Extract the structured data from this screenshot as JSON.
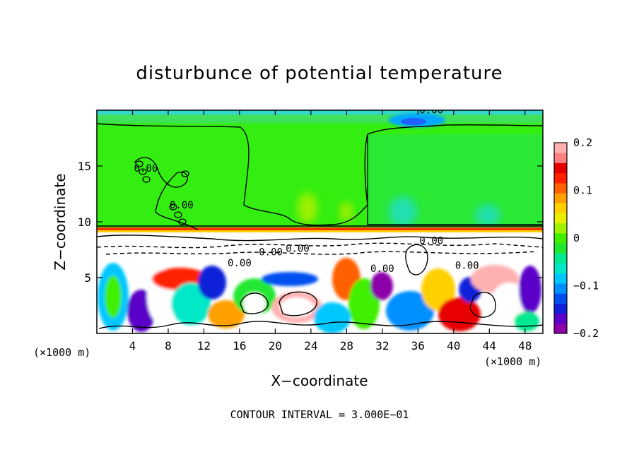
{
  "chart_data": {
    "type": "heatmap",
    "title": "disturbunce of potential temperature",
    "xlabel": "X−coordinate",
    "ylabel": "Z−coordinate",
    "x_unit": "(×1000 m)",
    "x_unit_right": "(×1000 m)",
    "xlim": [
      0,
      50
    ],
    "ylim": [
      0,
      20
    ],
    "x_ticks": [
      4,
      8,
      12,
      16,
      20,
      24,
      28,
      32,
      36,
      40,
      44,
      48
    ],
    "x_tick_labels": [
      "4",
      "8",
      "12",
      "16",
      "20",
      "24",
      "28",
      "32",
      "36",
      "40",
      "44",
      "48"
    ],
    "y_ticks": [
      5,
      10,
      15
    ],
    "y_tick_labels": [
      "5",
      "10",
      "15"
    ],
    "colorbar": {
      "min": -0.2,
      "max": 0.2,
      "ticks": [
        -0.2,
        -0.1,
        0,
        0.1,
        0.2
      ],
      "tick_labels": [
        "−0.2",
        "−0.1",
        "0",
        "0.1",
        "0.2"
      ],
      "colors": [
        "#8b00a8",
        "#5a00c8",
        "#1020d8",
        "#0050f0",
        "#0090ff",
        "#00c8ff",
        "#00e8c8",
        "#00e890",
        "#20e830",
        "#40f000",
        "#a0f000",
        "#e8f000",
        "#ffd000",
        "#ffa000",
        "#ff6000",
        "#ff2000",
        "#e80000",
        "#ff8080",
        "#ffb0b0"
      ]
    },
    "contour_labels": [
      {
        "text": "0.00",
        "x": 37.5,
        "z": 19.7
      },
      {
        "text": "0.00",
        "x": 5.5,
        "z": 14.5
      },
      {
        "text": "0.00",
        "x": 9.5,
        "z": 11.2
      },
      {
        "text": "0.00",
        "x": 19.5,
        "z": 7.0
      },
      {
        "text": "0.00",
        "x": 22.5,
        "z": 7.3
      },
      {
        "text": "0.00",
        "x": 32.0,
        "z": 5.5
      },
      {
        "text": "0.00",
        "x": 37.5,
        "z": 8.0
      },
      {
        "text": "0.00",
        "x": 41.5,
        "z": 5.8
      },
      {
        "text": "0.00",
        "x": 16.0,
        "z": 6.0
      }
    ],
    "footer": "CONTOUR INTERVAL = 3.000E−01"
  }
}
